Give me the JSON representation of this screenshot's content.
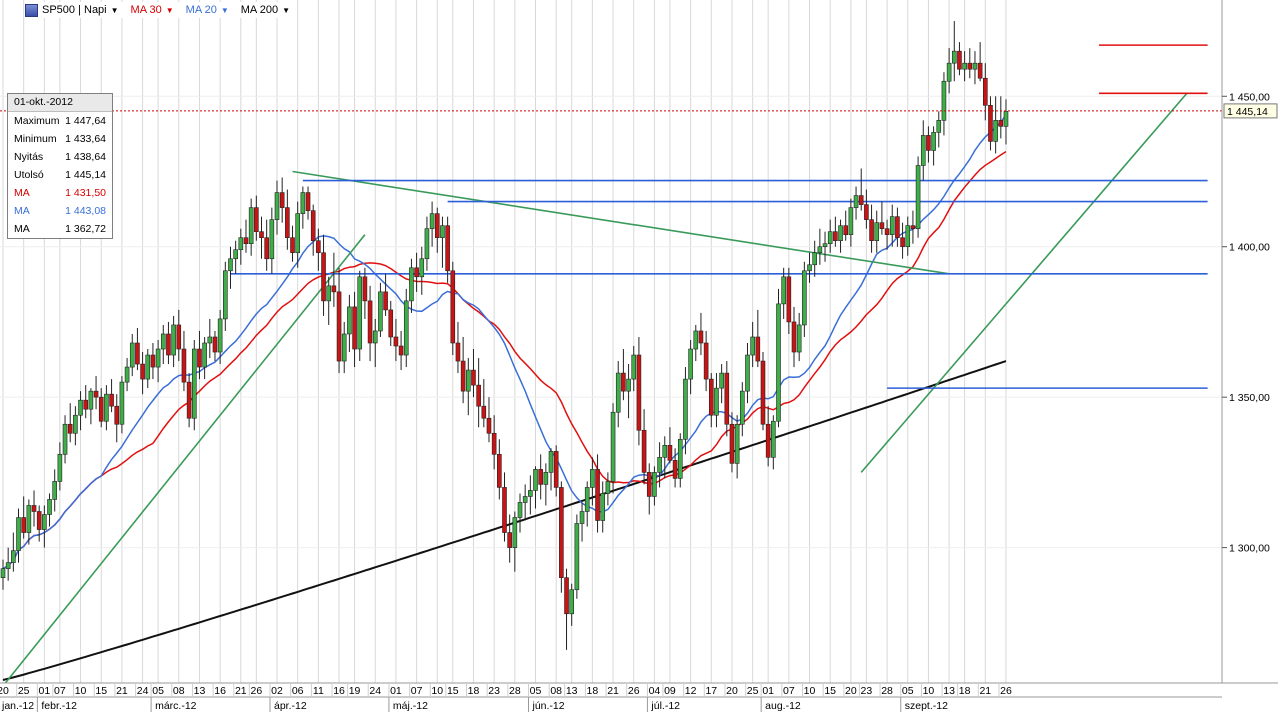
{
  "toolbar": {
    "symbol": "SP500 | Napi",
    "ma30": "MA 30",
    "ma20": "MA 20",
    "ma200": "MA 200"
  },
  "infobox": {
    "date": "01-okt.-2012",
    "rows": [
      {
        "label": "Maximum",
        "value": "1 447,64",
        "color": "#000000"
      },
      {
        "label": "Minimum",
        "value": "1 433,64",
        "color": "#000000"
      },
      {
        "label": "Nyitás",
        "value": "1 438,64",
        "color": "#000000"
      },
      {
        "label": "Utolsó",
        "value": "1 445,14",
        "color": "#000000"
      },
      {
        "label": "MA",
        "value": "1 431,50",
        "color": "#d40000"
      },
      {
        "label": "MA",
        "value": "1 443,08",
        "color": "#3a6fd8"
      },
      {
        "label": "MA",
        "value": "1 362,72",
        "color": "#000000"
      }
    ]
  },
  "colors": {
    "up": "#3fae49",
    "down": "#c81414",
    "ma20": "#3a6fd8",
    "ma30": "#e01010",
    "ma200": "#111111",
    "trend_green": "#3a9a5a",
    "level_blue": "#2c5fd8",
    "level_red": "#e01010",
    "grid": "#d8d8d8"
  },
  "chart_data": {
    "type": "candlestick",
    "title": "SP500 | Napi",
    "ylim": [
      1255,
      1482
    ],
    "y_ticks": [
      1300,
      1350,
      1400,
      1450
    ],
    "y_tick_labels": [
      "1 300,00",
      "1 350,00",
      "1 400,00",
      "1 450,00"
    ],
    "last_price": 1445.14,
    "last_price_label": "1 445,14",
    "day_labels": [
      "20",
      "25",
      "01",
      "07",
      "10",
      "15",
      "21",
      "24",
      "05",
      "08",
      "13",
      "16",
      "21",
      "26",
      "02",
      "06",
      "11",
      "16",
      "19",
      "24",
      "01",
      "07",
      "10",
      "15",
      "18",
      "23",
      "28",
      "05",
      "08",
      "13",
      "18",
      "21",
      "26",
      "04",
      "09",
      "12",
      "17",
      "20",
      "25",
      "01",
      "07",
      "10",
      "15",
      "20",
      "23",
      "28",
      "05",
      "10",
      "13",
      "18",
      "21",
      "26"
    ],
    "month_labels": [
      "jan.-12",
      "febr.-12",
      "márc.-12",
      "ápr.-12",
      "máj.-12",
      "jún.-12",
      "júl.-12",
      "aug.-12",
      "szept.-12"
    ],
    "candles": [
      [
        1290,
        1296,
        1286,
        1293
      ],
      [
        1293,
        1300,
        1289,
        1295
      ],
      [
        1295,
        1305,
        1292,
        1299
      ],
      [
        1299,
        1313,
        1295,
        1310
      ],
      [
        1310,
        1317,
        1303,
        1305
      ],
      [
        1305,
        1316,
        1301,
        1314
      ],
      [
        1314,
        1319,
        1307,
        1312
      ],
      [
        1312,
        1314,
        1302,
        1306
      ],
      [
        1306,
        1314,
        1300,
        1311
      ],
      [
        1311,
        1318,
        1307,
        1316
      ],
      [
        1316,
        1326,
        1312,
        1322
      ],
      [
        1322,
        1335,
        1319,
        1331
      ],
      [
        1331,
        1344,
        1328,
        1341
      ],
      [
        1341,
        1348,
        1335,
        1338
      ],
      [
        1338,
        1347,
        1334,
        1344
      ],
      [
        1344,
        1352,
        1339,
        1349
      ],
      [
        1349,
        1354,
        1343,
        1346
      ],
      [
        1346,
        1353,
        1341,
        1352
      ],
      [
        1352,
        1357,
        1346,
        1350
      ],
      [
        1350,
        1353,
        1340,
        1342
      ],
      [
        1342,
        1354,
        1339,
        1351
      ],
      [
        1351,
        1356,
        1345,
        1347
      ],
      [
        1347,
        1351,
        1335,
        1341
      ],
      [
        1341,
        1357,
        1338,
        1355
      ],
      [
        1355,
        1363,
        1352,
        1360
      ],
      [
        1360,
        1371,
        1357,
        1368
      ],
      [
        1368,
        1373,
        1359,
        1361
      ],
      [
        1361,
        1365,
        1351,
        1356
      ],
      [
        1356,
        1366,
        1353,
        1364
      ],
      [
        1364,
        1368,
        1356,
        1360
      ],
      [
        1360,
        1369,
        1355,
        1366
      ],
      [
        1366,
        1374,
        1361,
        1371
      ],
      [
        1371,
        1375,
        1361,
        1364
      ],
      [
        1364,
        1377,
        1360,
        1374
      ],
      [
        1374,
        1379,
        1362,
        1366
      ],
      [
        1366,
        1372,
        1352,
        1355
      ],
      [
        1355,
        1358,
        1340,
        1343
      ],
      [
        1343,
        1369,
        1339,
        1366
      ],
      [
        1366,
        1372,
        1356,
        1360
      ],
      [
        1360,
        1370,
        1356,
        1368
      ],
      [
        1368,
        1376,
        1363,
        1370
      ],
      [
        1370,
        1372,
        1362,
        1365
      ],
      [
        1365,
        1379,
        1361,
        1376
      ],
      [
        1376,
        1395,
        1372,
        1392
      ],
      [
        1392,
        1400,
        1386,
        1396
      ],
      [
        1396,
        1402,
        1391,
        1399
      ],
      [
        1399,
        1406,
        1394,
        1403
      ],
      [
        1403,
        1409,
        1398,
        1401
      ],
      [
        1401,
        1416,
        1397,
        1413
      ],
      [
        1413,
        1417,
        1402,
        1405
      ],
      [
        1405,
        1410,
        1396,
        1403
      ],
      [
        1403,
        1409,
        1392,
        1396
      ],
      [
        1396,
        1413,
        1391,
        1409
      ],
      [
        1409,
        1422,
        1404,
        1418
      ],
      [
        1418,
        1423,
        1408,
        1413
      ],
      [
        1413,
        1419,
        1399,
        1403
      ],
      [
        1403,
        1407,
        1395,
        1398
      ],
      [
        1398,
        1415,
        1393,
        1411
      ],
      [
        1411,
        1420,
        1406,
        1418
      ],
      [
        1418,
        1420,
        1409,
        1412
      ],
      [
        1412,
        1414,
        1397,
        1402
      ],
      [
        1402,
        1406,
        1392,
        1398
      ],
      [
        1398,
        1404,
        1377,
        1382
      ],
      [
        1382,
        1390,
        1374,
        1387
      ],
      [
        1387,
        1398,
        1380,
        1385
      ],
      [
        1385,
        1393,
        1358,
        1362
      ],
      [
        1362,
        1375,
        1358,
        1371
      ],
      [
        1371,
        1384,
        1365,
        1380
      ],
      [
        1380,
        1385,
        1360,
        1366
      ],
      [
        1366,
        1392,
        1362,
        1390
      ],
      [
        1390,
        1393,
        1376,
        1382
      ],
      [
        1382,
        1387,
        1362,
        1368
      ],
      [
        1368,
        1376,
        1360,
        1372
      ],
      [
        1372,
        1388,
        1370,
        1385
      ],
      [
        1385,
        1391,
        1377,
        1379
      ],
      [
        1379,
        1382,
        1367,
        1370
      ],
      [
        1370,
        1376,
        1362,
        1367
      ],
      [
        1367,
        1372,
        1359,
        1364
      ],
      [
        1364,
        1386,
        1360,
        1382
      ],
      [
        1382,
        1396,
        1378,
        1393
      ],
      [
        1393,
        1398,
        1385,
        1390
      ],
      [
        1390,
        1400,
        1384,
        1396
      ],
      [
        1396,
        1410,
        1392,
        1406
      ],
      [
        1406,
        1415,
        1400,
        1411
      ],
      [
        1411,
        1413,
        1398,
        1403
      ],
      [
        1403,
        1410,
        1393,
        1407
      ],
      [
        1407,
        1410,
        1388,
        1392
      ],
      [
        1392,
        1395,
        1364,
        1368
      ],
      [
        1368,
        1375,
        1358,
        1362
      ],
      [
        1362,
        1370,
        1348,
        1352
      ],
      [
        1352,
        1363,
        1344,
        1359
      ],
      [
        1359,
        1366,
        1350,
        1354
      ],
      [
        1354,
        1363,
        1340,
        1347
      ],
      [
        1347,
        1356,
        1340,
        1343
      ],
      [
        1343,
        1350,
        1335,
        1338
      ],
      [
        1338,
        1344,
        1326,
        1331
      ],
      [
        1331,
        1336,
        1316,
        1320
      ],
      [
        1320,
        1325,
        1302,
        1305
      ],
      [
        1305,
        1311,
        1295,
        1300
      ],
      [
        1300,
        1312,
        1292,
        1310
      ],
      [
        1310,
        1318,
        1305,
        1315
      ],
      [
        1315,
        1321,
        1309,
        1317
      ],
      [
        1317,
        1324,
        1311,
        1319
      ],
      [
        1319,
        1327,
        1313,
        1326
      ],
      [
        1326,
        1331,
        1316,
        1321
      ],
      [
        1321,
        1328,
        1314,
        1325
      ],
      [
        1325,
        1333,
        1319,
        1332
      ],
      [
        1332,
        1334,
        1317,
        1320
      ],
      [
        1320,
        1322,
        1285,
        1290
      ],
      [
        1290,
        1293,
        1266,
        1278
      ],
      [
        1278,
        1288,
        1274,
        1286
      ],
      [
        1286,
        1311,
        1283,
        1308
      ],
      [
        1308,
        1315,
        1302,
        1312
      ],
      [
        1312,
        1322,
        1307,
        1320
      ],
      [
        1320,
        1330,
        1314,
        1326
      ],
      [
        1326,
        1331,
        1305,
        1309
      ],
      [
        1309,
        1322,
        1305,
        1318
      ],
      [
        1318,
        1325,
        1314,
        1322
      ],
      [
        1322,
        1348,
        1318,
        1345
      ],
      [
        1345,
        1362,
        1340,
        1358
      ],
      [
        1358,
        1366,
        1349,
        1352
      ],
      [
        1352,
        1361,
        1343,
        1356
      ],
      [
        1356,
        1367,
        1352,
        1364
      ],
      [
        1364,
        1370,
        1334,
        1339
      ],
      [
        1339,
        1346,
        1321,
        1325
      ],
      [
        1325,
        1328,
        1311,
        1317
      ],
      [
        1317,
        1327,
        1314,
        1325
      ],
      [
        1325,
        1335,
        1320,
        1330
      ],
      [
        1330,
        1337,
        1323,
        1334
      ],
      [
        1334,
        1340,
        1328,
        1329
      ],
      [
        1329,
        1333,
        1320,
        1323
      ],
      [
        1323,
        1338,
        1320,
        1336
      ],
      [
        1336,
        1360,
        1331,
        1356
      ],
      [
        1356,
        1369,
        1351,
        1366
      ],
      [
        1366,
        1374,
        1362,
        1372
      ],
      [
        1372,
        1378,
        1364,
        1368
      ],
      [
        1368,
        1372,
        1352,
        1356
      ],
      [
        1356,
        1358,
        1340,
        1344
      ],
      [
        1344,
        1358,
        1340,
        1353
      ],
      [
        1353,
        1361,
        1348,
        1358
      ],
      [
        1358,
        1362,
        1337,
        1341
      ],
      [
        1341,
        1345,
        1325,
        1328
      ],
      [
        1328,
        1344,
        1323,
        1341
      ],
      [
        1341,
        1355,
        1337,
        1352
      ],
      [
        1352,
        1368,
        1348,
        1364
      ],
      [
        1364,
        1375,
        1360,
        1370
      ],
      [
        1370,
        1379,
        1360,
        1362
      ],
      [
        1362,
        1365,
        1339,
        1341
      ],
      [
        1341,
        1347,
        1327,
        1330
      ],
      [
        1330,
        1344,
        1326,
        1342
      ],
      [
        1342,
        1386,
        1340,
        1381
      ],
      [
        1381,
        1393,
        1376,
        1390
      ],
      [
        1390,
        1393,
        1371,
        1375
      ],
      [
        1375,
        1380,
        1360,
        1365
      ],
      [
        1365,
        1378,
        1362,
        1374
      ],
      [
        1374,
        1395,
        1370,
        1392
      ],
      [
        1392,
        1398,
        1388,
        1394
      ],
      [
        1394,
        1402,
        1390,
        1398
      ],
      [
        1398,
        1406,
        1394,
        1400
      ],
      [
        1400,
        1405,
        1395,
        1401
      ],
      [
        1401,
        1409,
        1398,
        1405
      ],
      [
        1405,
        1410,
        1400,
        1402
      ],
      [
        1402,
        1409,
        1398,
        1407
      ],
      [
        1407,
        1412,
        1402,
        1404
      ],
      [
        1404,
        1416,
        1400,
        1413
      ],
      [
        1413,
        1420,
        1409,
        1417
      ],
      [
        1417,
        1426,
        1412,
        1414
      ],
      [
        1414,
        1419,
        1406,
        1409
      ],
      [
        1409,
        1414,
        1398,
        1402
      ],
      [
        1402,
        1412,
        1398,
        1408
      ],
      [
        1408,
        1415,
        1404,
        1406
      ],
      [
        1406,
        1409,
        1399,
        1404
      ],
      [
        1404,
        1414,
        1400,
        1410
      ],
      [
        1410,
        1413,
        1400,
        1403
      ],
      [
        1403,
        1408,
        1396,
        1400
      ],
      [
        1400,
        1410,
        1397,
        1407
      ],
      [
        1407,
        1412,
        1401,
        1406
      ],
      [
        1406,
        1430,
        1403,
        1427
      ],
      [
        1427,
        1442,
        1422,
        1437
      ],
      [
        1437,
        1440,
        1428,
        1432
      ],
      [
        1432,
        1440,
        1427,
        1438
      ],
      [
        1438,
        1445,
        1433,
        1442
      ],
      [
        1442,
        1458,
        1437,
        1455
      ],
      [
        1455,
        1466,
        1451,
        1461
      ],
      [
        1461,
        1475,
        1455,
        1465
      ],
      [
        1465,
        1468,
        1457,
        1459
      ],
      [
        1459,
        1465,
        1455,
        1461
      ],
      [
        1461,
        1466,
        1456,
        1459
      ],
      [
        1459,
        1465,
        1454,
        1461
      ],
      [
        1461,
        1468,
        1455,
        1456
      ],
      [
        1456,
        1461,
        1442,
        1447
      ],
      [
        1447,
        1450,
        1432,
        1435
      ],
      [
        1435,
        1450,
        1431,
        1442
      ],
      [
        1442,
        1450,
        1436,
        1440
      ],
      [
        1440,
        1449,
        1434,
        1445
      ]
    ],
    "trendlines": [
      {
        "x": [
          0,
          70
        ],
        "y": [
          1254,
          1404
        ],
        "color": "trend_green"
      },
      {
        "x": [
          56,
          183
        ],
        "y": [
          1425,
          1391
        ],
        "color": "trend_green"
      },
      {
        "x": [
          166,
          229
        ],
        "y": [
          1325,
          1451
        ],
        "color": "trend_green"
      },
      {
        "x": [
          58,
          233
        ],
        "y": [
          1422,
          1422
        ],
        "color": "level_blue"
      },
      {
        "x": [
          86,
          233
        ],
        "y": [
          1415,
          1415
        ],
        "color": "level_blue"
      },
      {
        "x": [
          44,
          233
        ],
        "y": [
          1391,
          1391
        ],
        "color": "level_blue"
      },
      {
        "x": [
          171,
          233
        ],
        "y": [
          1353,
          1353
        ],
        "color": "level_blue"
      },
      {
        "x": [
          212,
          233
        ],
        "y": [
          1467,
          1467
        ],
        "color": "level_red"
      },
      {
        "x": [
          212,
          233
        ],
        "y": [
          1451,
          1451
        ],
        "color": "level_red"
      }
    ]
  }
}
